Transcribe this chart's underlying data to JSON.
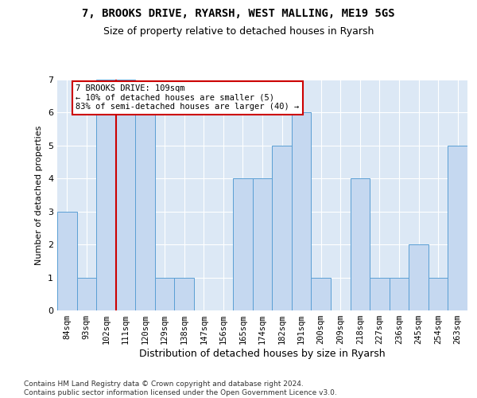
{
  "title_line1": "7, BROOKS DRIVE, RYARSH, WEST MALLING, ME19 5GS",
  "title_line2": "Size of property relative to detached houses in Ryarsh",
  "xlabel": "Distribution of detached houses by size in Ryarsh",
  "ylabel": "Number of detached properties",
  "categories": [
    "84sqm",
    "93sqm",
    "102sqm",
    "111sqm",
    "120sqm",
    "129sqm",
    "138sqm",
    "147sqm",
    "156sqm",
    "165sqm",
    "174sqm",
    "182sqm",
    "191sqm",
    "200sqm",
    "209sqm",
    "218sqm",
    "227sqm",
    "236sqm",
    "245sqm",
    "254sqm",
    "263sqm"
  ],
  "values": [
    3,
    1,
    7,
    7,
    6,
    1,
    1,
    0,
    0,
    4,
    4,
    5,
    6,
    1,
    0,
    4,
    1,
    1,
    2,
    1,
    5
  ],
  "bar_color": "#c5d8f0",
  "bar_edge_color": "#5a9fd4",
  "highlight_index": 2,
  "highlight_line_color": "#cc0000",
  "annotation_box_text": "7 BROOKS DRIVE: 109sqm\n← 10% of detached houses are smaller (5)\n83% of semi-detached houses are larger (40) →",
  "annotation_box_color": "#cc0000",
  "annotation_text_color": "#000000",
  "ylim": [
    0,
    7
  ],
  "yticks": [
    0,
    1,
    2,
    3,
    4,
    5,
    6,
    7
  ],
  "background_color": "#dce8f5",
  "footer_text": "Contains HM Land Registry data © Crown copyright and database right 2024.\nContains public sector information licensed under the Open Government Licence v3.0.",
  "title_fontsize": 10,
  "subtitle_fontsize": 9,
  "xlabel_fontsize": 9,
  "ylabel_fontsize": 8,
  "tick_fontsize": 7.5,
  "footer_fontsize": 6.5
}
